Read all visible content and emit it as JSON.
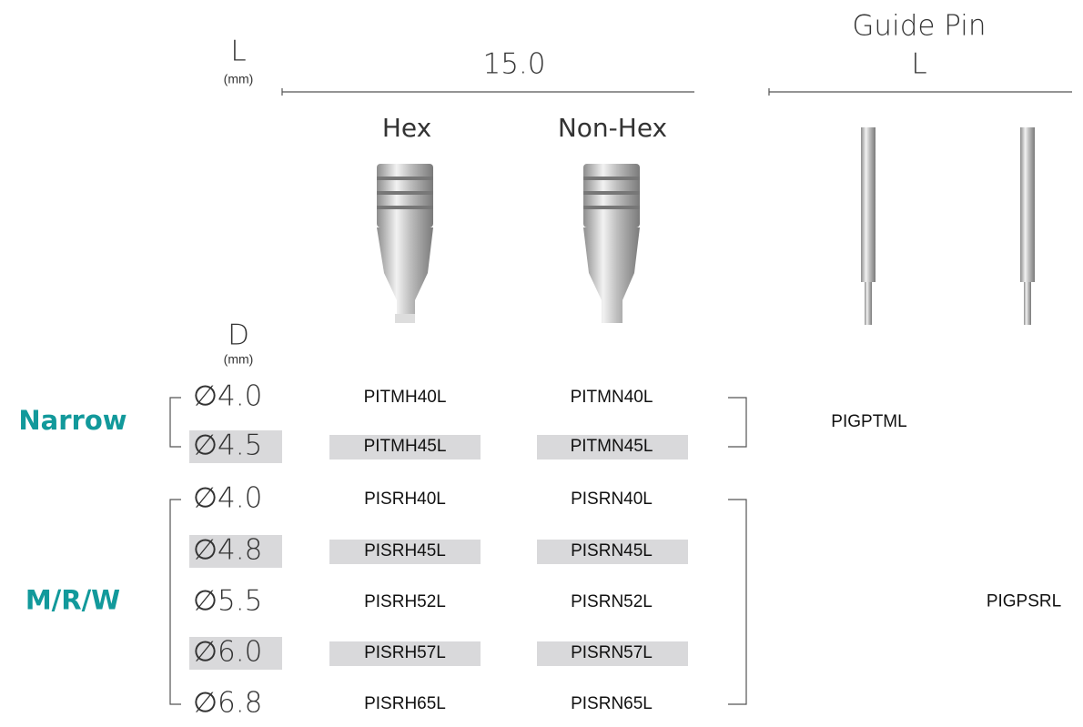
{
  "header": {
    "length_label": "L",
    "length_unit": "(mm)",
    "length_value": "15.0",
    "guide_pin_title": "Guide Pin",
    "guide_pin_length": "L"
  },
  "columns": [
    "Hex",
    "Non-Hex"
  ],
  "diameter_label": "D",
  "diameter_unit": "(mm)",
  "groups": [
    {
      "name": "Narrow",
      "guide_pin": "PIGPTML",
      "rows": [
        {
          "diameter": "∅4.0",
          "hex": "PITMH40L",
          "non_hex": "PITMN40L"
        },
        {
          "diameter": "∅4.5",
          "hex": "PITMH45L",
          "non_hex": "PITMN45L"
        }
      ]
    },
    {
      "name": "M/R/W",
      "guide_pin": "PIGPSRL",
      "rows": [
        {
          "diameter": "∅4.0",
          "hex": "PISRH40L",
          "non_hex": "PISRN40L"
        },
        {
          "diameter": "∅4.8",
          "hex": "PISRH45L",
          "non_hex": "PISRN45L"
        },
        {
          "diameter": "∅5.5",
          "hex": "PISRH52L",
          "non_hex": "PISRN52L"
        },
        {
          "diameter": "∅6.0",
          "hex": "PISRH57L",
          "non_hex": "PISRN57L"
        },
        {
          "diameter": "∅6.8",
          "hex": "PISRH65L",
          "non_hex": "PISRN65L"
        }
      ]
    }
  ]
}
